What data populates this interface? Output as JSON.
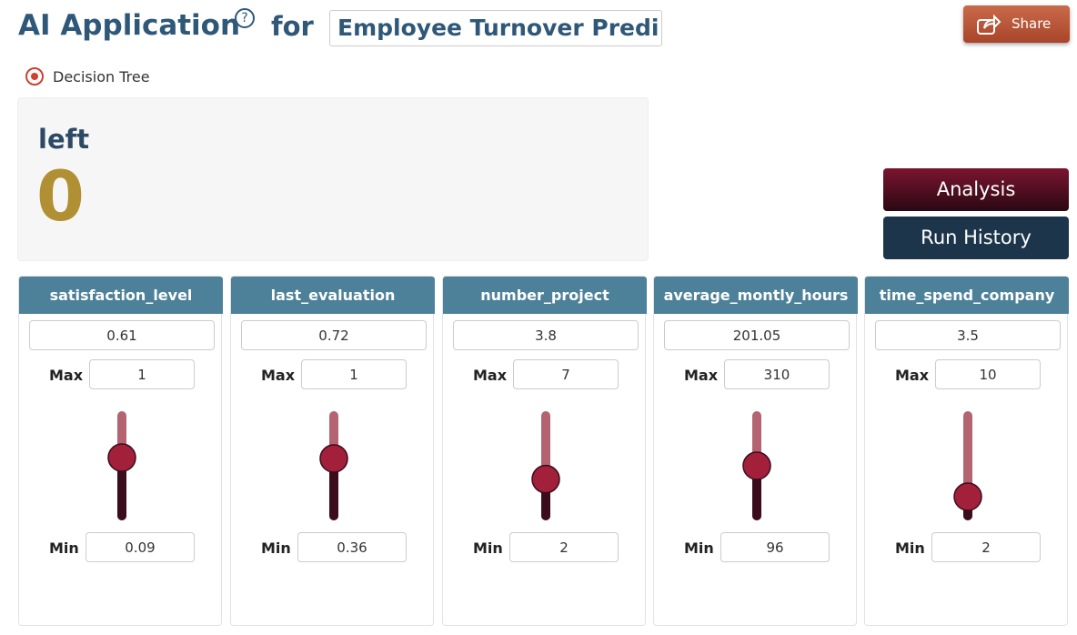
{
  "header": {
    "title": "AI Application",
    "help": "?",
    "for": "for",
    "app_name": "Employee Turnover Predi",
    "share": "Share"
  },
  "model": "Decision Tree",
  "result": {
    "target": "left",
    "prediction": 0
  },
  "buttons": {
    "analysis": "Analysis",
    "run_history": "Run History"
  },
  "max_label": "Max",
  "min_label": "Min",
  "features": [
    {
      "name": "satisfaction_level",
      "value": 0.61,
      "max": 1,
      "min": 0.09
    },
    {
      "name": "last_evaluation",
      "value": 0.72,
      "max": 1,
      "min": 0.36
    },
    {
      "name": "number_project",
      "value": 3.8,
      "max": 7,
      "min": 2
    },
    {
      "name": "average_montly_hours",
      "value": 201.05,
      "max": 310,
      "min": 96
    },
    {
      "name": "time_spend_company",
      "value": 3.5,
      "max": 10,
      "min": 2
    }
  ]
}
